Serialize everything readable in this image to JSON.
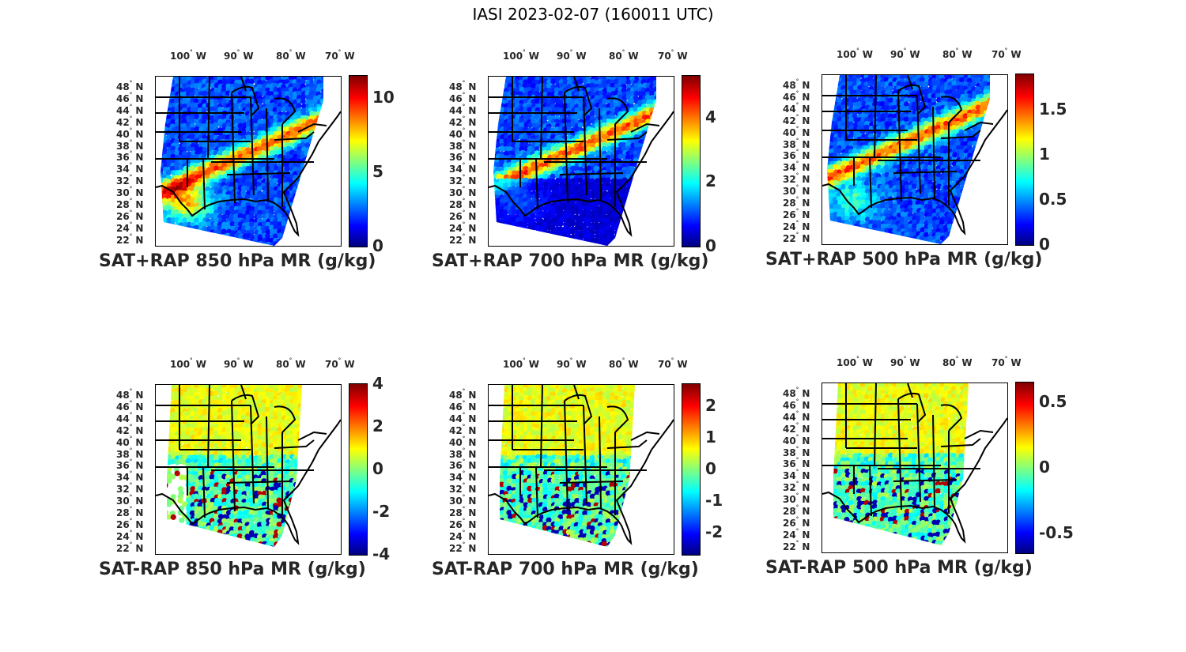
{
  "figure_title": "IASI 2023-02-07 (160011 UTC)",
  "lon_labels": [
    "100",
    "90",
    "80",
    "70"
  ],
  "lon_hemisphere": "W",
  "lat_labels": [
    "48",
    "46",
    "44",
    "42",
    "40",
    "38",
    "36",
    "34",
    "32",
    "30",
    "28",
    "26",
    "24",
    "22"
  ],
  "lat_hemisphere": "N",
  "degree_symbol": "°",
  "colormap": "jet",
  "panels": [
    {
      "title": "SAT+RAP 850 hPa MR (g/kg)",
      "kind": "total",
      "range": [
        0,
        11.5
      ],
      "ticks": [
        {
          "value": 0,
          "label": "0"
        },
        {
          "value": 5,
          "label": "5"
        },
        {
          "value": 10,
          "label": "10"
        }
      ]
    },
    {
      "title": "SAT+RAP 700 hPa MR (g/kg)",
      "kind": "total",
      "range": [
        0,
        5.3
      ],
      "ticks": [
        {
          "value": 0,
          "label": "0"
        },
        {
          "value": 2,
          "label": "2"
        },
        {
          "value": 4,
          "label": "4"
        }
      ]
    },
    {
      "title": "SAT+RAP 500 hPa MR (g/kg)",
      "kind": "total",
      "range": [
        0,
        1.9
      ],
      "ticks": [
        {
          "value": 0,
          "label": "0"
        },
        {
          "value": 0.5,
          "label": "0.5"
        },
        {
          "value": 1,
          "label": "1"
        },
        {
          "value": 1.5,
          "label": "1.5"
        }
      ]
    },
    {
      "title": "SAT-RAP 850 hPa MR (g/kg)",
      "kind": "diff",
      "range": [
        -4,
        4
      ],
      "ticks": [
        {
          "value": -4,
          "label": "-4"
        },
        {
          "value": -2,
          "label": "-2"
        },
        {
          "value": 0,
          "label": "0"
        },
        {
          "value": 2,
          "label": "2"
        },
        {
          "value": 4,
          "label": "4"
        }
      ]
    },
    {
      "title": "SAT-RAP 700 hPa MR (g/kg)",
      "kind": "diff",
      "range": [
        -2.7,
        2.7
      ],
      "ticks": [
        {
          "value": -2,
          "label": "-2"
        },
        {
          "value": -1,
          "label": "-1"
        },
        {
          "value": 0,
          "label": "0"
        },
        {
          "value": 1,
          "label": "1"
        },
        {
          "value": 2,
          "label": "2"
        }
      ]
    },
    {
      "title": "SAT-RAP 500 hPa MR (g/kg)",
      "kind": "diff",
      "range": [
        -0.65,
        0.65
      ],
      "ticks": [
        {
          "value": -0.5,
          "label": "-0.5"
        },
        {
          "value": 0,
          "label": "0"
        },
        {
          "value": 0.5,
          "label": "0.5"
        }
      ]
    }
  ]
}
